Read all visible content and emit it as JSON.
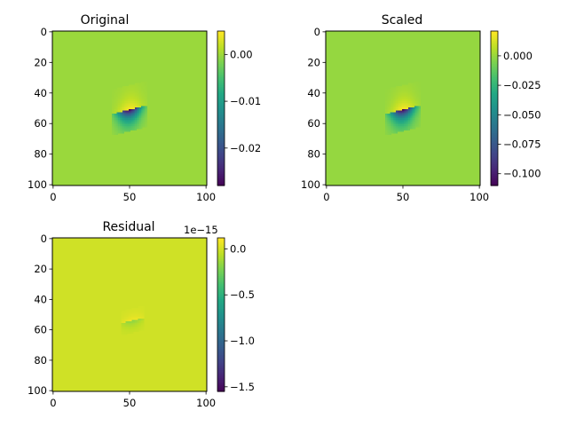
{
  "chart_data": [
    {
      "type": "heatmap",
      "title": "Original",
      "xlabel": "",
      "ylabel": "",
      "x_ticks": [
        0,
        50,
        100
      ],
      "y_ticks": [
        0,
        20,
        40,
        60,
        80,
        100
      ],
      "xlim": [
        0,
        101
      ],
      "ylim": [
        101,
        0
      ],
      "grid": false,
      "colormap": "viridis",
      "colorbar": {
        "vmin": -0.028,
        "vmax": 0.005,
        "ticks": [
          0.0,
          -0.01,
          -0.02
        ],
        "tick_labels": [
          "0.00",
          "−0.01",
          "−0.02"
        ],
        "offset_text": ""
      },
      "field": {
        "background": 0.0,
        "center": [
          50,
          51
        ],
        "cut_slope": -0.25,
        "cut_half_width": 10,
        "upper_extent": 16,
        "lower_extent": 14,
        "side_extent": 10,
        "peak_positive": 0.005,
        "peak_negative": -0.028
      }
    },
    {
      "type": "heatmap",
      "title": "Scaled",
      "xlabel": "",
      "ylabel": "",
      "x_ticks": [
        0,
        50,
        100
      ],
      "y_ticks": [
        0,
        20,
        40,
        60,
        80,
        100
      ],
      "xlim": [
        0,
        101
      ],
      "ylim": [
        101,
        0
      ],
      "grid": false,
      "colormap": "viridis",
      "colorbar": {
        "vmin": -0.11,
        "vmax": 0.021,
        "ticks": [
          0.0,
          -0.025,
          -0.05,
          -0.075,
          -0.1
        ],
        "tick_labels": [
          "0.000",
          "−0.025",
          "−0.050",
          "−0.075",
          "−0.100"
        ],
        "offset_text": ""
      },
      "field": {
        "background": 0.0,
        "center": [
          50,
          51
        ],
        "cut_slope": -0.25,
        "cut_half_width": 10,
        "upper_extent": 16,
        "lower_extent": 14,
        "side_extent": 10,
        "peak_positive": 0.021,
        "peak_negative": -0.11
      }
    },
    {
      "type": "heatmap",
      "title": "Residual",
      "xlabel": "",
      "ylabel": "",
      "x_ticks": [
        0,
        50,
        100
      ],
      "y_ticks": [
        0,
        20,
        40,
        60,
        80,
        100
      ],
      "xlim": [
        0,
        101
      ],
      "ylim": [
        101,
        0
      ],
      "grid": false,
      "colormap": "viridis",
      "colorbar": {
        "vmin": -1.55,
        "vmax": 0.12,
        "ticks": [
          0.0,
          -0.5,
          -1.0,
          -1.5
        ],
        "tick_labels": [
          "0.0",
          "−0.5",
          "−1.0",
          "−1.5"
        ],
        "offset_text": "1e−15"
      },
      "field": {
        "background": 0.0,
        "center": [
          52,
          54
        ],
        "cut_slope": -0.25,
        "cut_half_width": 6,
        "upper_extent": 8,
        "lower_extent": 8,
        "side_extent": 10,
        "peak_positive": 0.1,
        "peak_negative": -0.18
      }
    }
  ]
}
